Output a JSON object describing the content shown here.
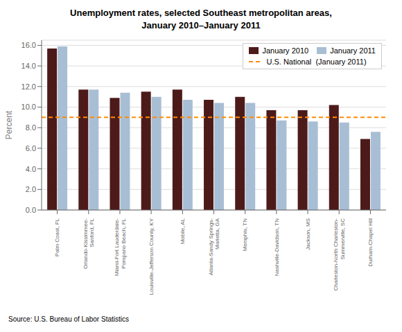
{
  "chart_data": {
    "type": "bar",
    "title": "Unemployment rates, selected Southeast metropolitan areas,\nJanuary 2010–January 2011",
    "categories": [
      "Palm Coast, FL",
      "Orlando-Kissimmee-\nSanford, FL",
      "Miami-Fort Lauderdale-\nPompano Beach, FL",
      "Louisville-Jefferson County, KY",
      "Mobile, AL",
      "Atlanta-Sandy Springs-\nMarietta, GA",
      "Memphis, TN",
      "Nashville-Davidson, TN",
      "Jackson, MS",
      "Charleston-North Charleston-\nSummerville, SC",
      "Durham-Chapel Hill"
    ],
    "series": [
      {
        "name": "January 2010",
        "color": "#4D1A1A",
        "values": [
          15.7,
          11.7,
          10.9,
          11.5,
          11.7,
          10.7,
          11.0,
          9.7,
          9.7,
          10.2,
          6.9
        ]
      },
      {
        "name": "January 2011",
        "color": "#A8BED4",
        "values": [
          15.9,
          11.7,
          11.4,
          11.0,
          10.7,
          10.4,
          10.4,
          8.7,
          8.6,
          8.5,
          7.6
        ]
      }
    ],
    "reference_lines": [
      {
        "name": "U.S. National  (January 2011)",
        "value": 9.0,
        "color": "#FF8C00",
        "line_style": "dashed"
      }
    ],
    "ylabel": "Percent",
    "ylim": [
      0,
      16.5
    ],
    "yticks": [
      {
        "value": 0.0,
        "label": "0.0"
      },
      {
        "value": 2.0,
        "label": "2.0"
      },
      {
        "value": 4.0,
        "label": "4.0"
      },
      {
        "value": 6.0,
        "label": "6.0"
      },
      {
        "value": 8.0,
        "label": "8.0"
      },
      {
        "value": 10.0,
        "label": "10.0"
      },
      {
        "value": 12.0,
        "label": "12.0"
      },
      {
        "value": 14.0,
        "label": "14.0"
      },
      {
        "value": 16.0,
        "label": "16.0"
      }
    ],
    "grid": true,
    "legend": "upper right",
    "annotations": [
      "Source: U.S. Bureau of Labor Statistics"
    ]
  }
}
